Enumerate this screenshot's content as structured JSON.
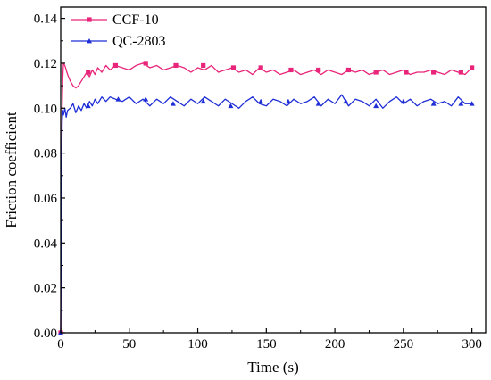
{
  "chart_data": {
    "type": "line",
    "title": "",
    "xlabel": "Time (s)",
    "ylabel": "Friction coefficient",
    "xlim": [
      0,
      310
    ],
    "ylim": [
      0.0,
      0.145
    ],
    "xticks": [
      0,
      50,
      100,
      150,
      200,
      250,
      300
    ],
    "xtick_labels": [
      "0",
      "50",
      "100",
      "150",
      "200",
      "250",
      "300"
    ],
    "yticks": [
      0.0,
      0.02,
      0.04,
      0.06,
      0.08,
      0.1,
      0.12,
      0.14
    ],
    "ytick_labels": [
      "0.00",
      "0.02",
      "0.04",
      "0.06",
      "0.08",
      "0.10",
      "0.12",
      "0.14"
    ],
    "legend_position": "top-left",
    "grid": false,
    "series": [
      {
        "name": "CCF-10",
        "color": "#e8257a",
        "marker": "square",
        "x": [
          0,
          0.5,
          1,
          1.5,
          2,
          3,
          4,
          5,
          7,
          9,
          11,
          13,
          15,
          17,
          19,
          21,
          23,
          25,
          27,
          30,
          33,
          36,
          40,
          45,
          50,
          55,
          60,
          65,
          70,
          75,
          80,
          85,
          90,
          95,
          100,
          105,
          110,
          115,
          120,
          125,
          130,
          135,
          140,
          145,
          150,
          155,
          160,
          165,
          170,
          175,
          180,
          185,
          190,
          195,
          200,
          205,
          210,
          215,
          220,
          225,
          230,
          235,
          240,
          245,
          250,
          255,
          260,
          265,
          270,
          275,
          280,
          285,
          290,
          295,
          300
        ],
        "values": [
          0.0,
          0.05,
          0.1,
          0.113,
          0.12,
          0.119,
          0.117,
          0.115,
          0.112,
          0.11,
          0.109,
          0.11,
          0.112,
          0.114,
          0.116,
          0.114,
          0.117,
          0.115,
          0.118,
          0.116,
          0.119,
          0.117,
          0.119,
          0.118,
          0.117,
          0.119,
          0.12,
          0.118,
          0.119,
          0.117,
          0.118,
          0.119,
          0.118,
          0.116,
          0.118,
          0.117,
          0.119,
          0.116,
          0.117,
          0.118,
          0.116,
          0.117,
          0.115,
          0.118,
          0.116,
          0.117,
          0.115,
          0.116,
          0.117,
          0.115,
          0.116,
          0.117,
          0.115,
          0.117,
          0.116,
          0.115,
          0.117,
          0.116,
          0.117,
          0.115,
          0.116,
          0.117,
          0.115,
          0.116,
          0.117,
          0.115,
          0.116,
          0.116,
          0.117,
          0.116,
          0.115,
          0.117,
          0.116,
          0.115,
          0.118
        ],
        "marker_x": [
          0,
          20,
          40,
          62,
          84,
          104,
          126,
          146,
          168,
          188,
          210,
          230,
          252,
          272,
          292,
          300
        ],
        "marker_values": [
          0.0,
          0.116,
          0.119,
          0.12,
          0.119,
          0.119,
          0.118,
          0.118,
          0.117,
          0.117,
          0.117,
          0.116,
          0.116,
          0.116,
          0.116,
          0.118
        ]
      },
      {
        "name": "QC-2803",
        "color": "#1f2ed6",
        "marker": "triangle",
        "x": [
          0,
          0.5,
          1,
          1.5,
          2,
          3,
          4,
          5,
          7,
          9,
          11,
          13,
          15,
          17,
          19,
          21,
          23,
          25,
          27,
          30,
          33,
          36,
          40,
          45,
          50,
          55,
          60,
          65,
          70,
          75,
          80,
          85,
          90,
          95,
          100,
          105,
          110,
          115,
          120,
          125,
          130,
          135,
          140,
          145,
          150,
          155,
          160,
          165,
          170,
          175,
          180,
          185,
          190,
          195,
          200,
          205,
          210,
          215,
          220,
          225,
          230,
          235,
          240,
          245,
          250,
          255,
          260,
          265,
          270,
          275,
          280,
          285,
          290,
          295,
          300
        ],
        "values": [
          0.0,
          0.06,
          0.094,
          0.099,
          0.097,
          0.1,
          0.096,
          0.099,
          0.1,
          0.102,
          0.098,
          0.101,
          0.099,
          0.102,
          0.1,
          0.103,
          0.101,
          0.104,
          0.102,
          0.105,
          0.103,
          0.105,
          0.104,
          0.103,
          0.105,
          0.102,
          0.104,
          0.101,
          0.104,
          0.102,
          0.105,
          0.103,
          0.101,
          0.104,
          0.102,
          0.105,
          0.103,
          0.101,
          0.104,
          0.102,
          0.1,
          0.103,
          0.105,
          0.102,
          0.101,
          0.104,
          0.103,
          0.101,
          0.104,
          0.102,
          0.103,
          0.105,
          0.101,
          0.104,
          0.102,
          0.106,
          0.101,
          0.104,
          0.103,
          0.101,
          0.104,
          0.1,
          0.103,
          0.105,
          0.102,
          0.104,
          0.101,
          0.103,
          0.104,
          0.102,
          0.103,
          0.101,
          0.105,
          0.102,
          0.102
        ],
        "marker_x": [
          0,
          20,
          42,
          62,
          82,
          104,
          124,
          146,
          166,
          188,
          208,
          230,
          250,
          272,
          292,
          300
        ],
        "marker_values": [
          0.0,
          0.101,
          0.104,
          0.104,
          0.102,
          0.103,
          0.101,
          0.103,
          0.103,
          0.102,
          0.103,
          0.101,
          0.103,
          0.102,
          0.102,
          0.102
        ]
      }
    ]
  }
}
